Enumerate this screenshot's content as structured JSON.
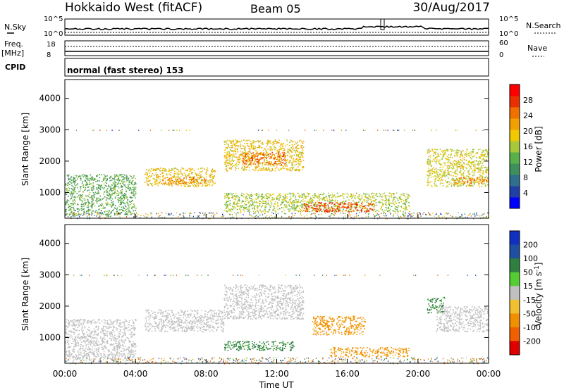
{
  "header": {
    "station": "Hokkaido West (fitACF)",
    "beam": "Beam 05",
    "date": "30/Aug/2017"
  },
  "colors": {
    "power_scale": [
      "#0000ff",
      "#1f3fa6",
      "#2f6e8c",
      "#3f8f5a",
      "#59b04a",
      "#a8c83c",
      "#f0c800",
      "#f0a000",
      "#f07000",
      "#e83000",
      "#ff0000"
    ],
    "velocity_scale": [
      "#1030c0",
      "#1f4fa0",
      "#2f8040",
      "#55cc33",
      "#c0c0c0",
      "#f0c030",
      "#f09000",
      "#f06000",
      "#e00000"
    ]
  },
  "strip": {
    "nsky_label": "N.Sky",
    "nsky_top": "10^5",
    "nsky_bottom": "10^0",
    "nsearch_label": "N.Search",
    "nsearch_top": "10^5",
    "nsearch_bottom": "10^0",
    "freq_label_1": "Freq.",
    "freq_label_2": "[MHz]",
    "freq_top": "18",
    "freq_bottom": "8",
    "nave_label": "Nave",
    "nave_top": "60",
    "nave_bottom": "0",
    "cpid_label": "CPID",
    "cpid_value": "normal (fast stereo) 153"
  },
  "chart_data": [
    {
      "type": "heatmap",
      "name": "power",
      "ylabel": "Slant Range [km]",
      "ylim": [
        180,
        4600
      ],
      "yticks": [
        "1000",
        "2000",
        "3000",
        "4000"
      ],
      "colorbar_label": "Power [dB]",
      "colorbar_ticks": [
        "4",
        "8",
        "12",
        "16",
        "20",
        "24",
        "28"
      ],
      "colorbar_range": [
        0,
        32
      ],
      "blobs": [
        {
          "t0": 0.0,
          "t1": 4.0,
          "r0": 300,
          "r1": 1600,
          "level": 12
        },
        {
          "t0": 4.5,
          "t1": 8.5,
          "r0": 1200,
          "r1": 1800,
          "level": 20
        },
        {
          "t0": 5.5,
          "t1": 8.0,
          "r0": 1300,
          "r1": 1500,
          "level": 24
        },
        {
          "t0": 9.0,
          "t1": 13.5,
          "r0": 1700,
          "r1": 2700,
          "level": 20
        },
        {
          "t0": 10.0,
          "t1": 12.5,
          "r0": 1900,
          "r1": 2300,
          "level": 26
        },
        {
          "t0": 9.0,
          "t1": 19.5,
          "r0": 400,
          "r1": 1000,
          "level": 16
        },
        {
          "t0": 13.5,
          "t1": 17.5,
          "r0": 400,
          "r1": 700,
          "level": 28
        },
        {
          "t0": 20.5,
          "t1": 24.0,
          "r0": 1200,
          "r1": 2400,
          "level": 18
        },
        {
          "t0": 22.0,
          "t1": 24.0,
          "r0": 1300,
          "r1": 1500,
          "level": 24
        }
      ]
    },
    {
      "type": "heatmap",
      "name": "velocity",
      "ylabel": "Slant Range [km]",
      "ylim": [
        180,
        4600
      ],
      "yticks": [
        "1000",
        "2000",
        "3000",
        "4000"
      ],
      "xlabel": "Time UT",
      "xticks": [
        "00:00",
        "04:00",
        "08:00",
        "12:00",
        "16:00",
        "20:00",
        "00:00"
      ],
      "xlim": [
        0,
        24
      ],
      "colorbar_label": "Velocity [m s^-1]",
      "colorbar_ticks": [
        "200",
        "100",
        "50",
        "15",
        "-15",
        "-50",
        "-100",
        "-200"
      ],
      "blobs": [
        {
          "t0": 0.0,
          "t1": 4.0,
          "r0": 300,
          "r1": 1600,
          "level": -5
        },
        {
          "t0": 4.5,
          "t1": 9.0,
          "r0": 1200,
          "r1": 1900,
          "level": 0
        },
        {
          "t0": 9.0,
          "t1": 13.5,
          "r0": 1600,
          "r1": 2700,
          "level": 0
        },
        {
          "t0": 9.0,
          "t1": 13.0,
          "r0": 600,
          "r1": 900,
          "level": 40
        },
        {
          "t0": 14.0,
          "t1": 17.0,
          "r0": 1100,
          "r1": 1700,
          "level": -40
        },
        {
          "t0": 15.0,
          "t1": 19.5,
          "r0": 400,
          "r1": 700,
          "level": -40
        },
        {
          "t0": 20.5,
          "t1": 21.5,
          "r0": 1800,
          "r1": 2300,
          "level": 40
        },
        {
          "t0": 21.0,
          "t1": 24.0,
          "r0": 1200,
          "r1": 2000,
          "level": 0
        }
      ]
    }
  ]
}
